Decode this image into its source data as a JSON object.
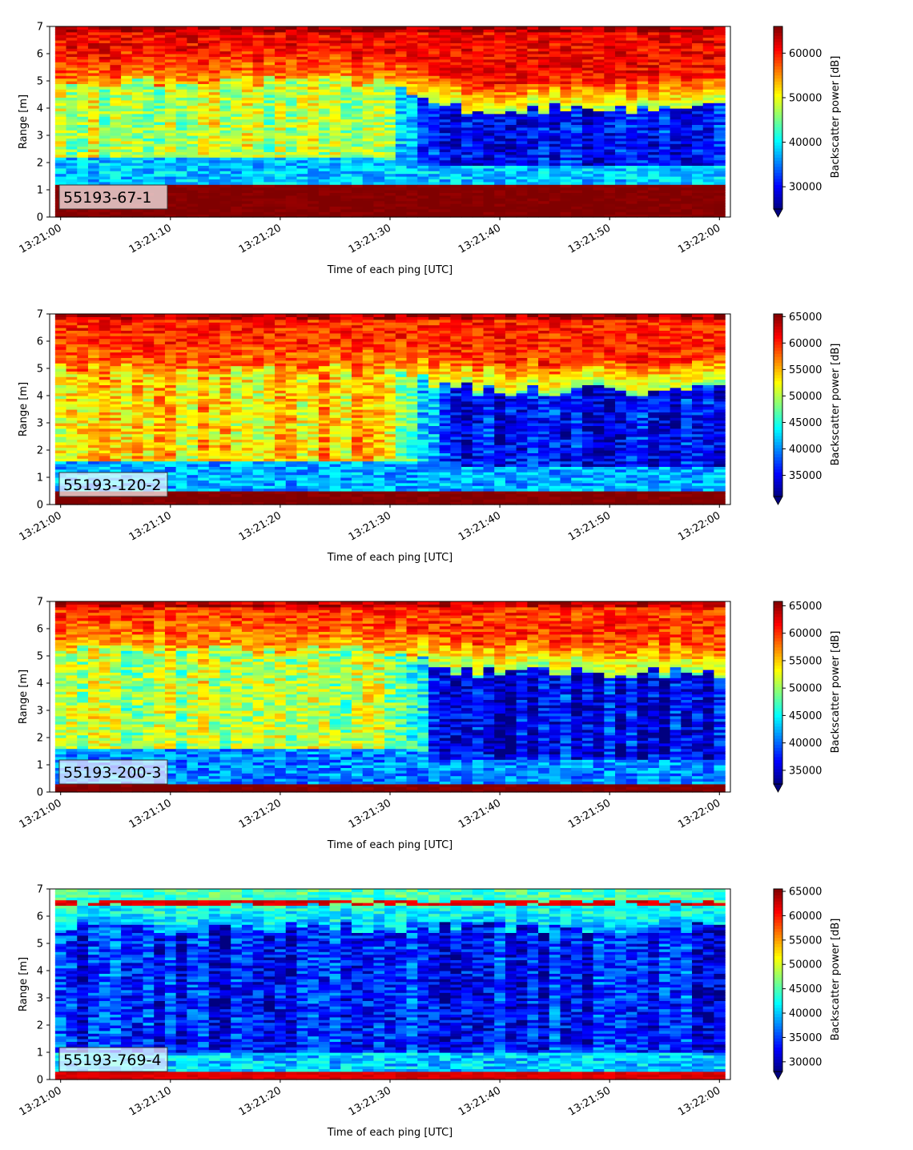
{
  "chart_data": [
    {
      "type": "heatmap",
      "id_label": "55193-67-1",
      "xlabel": "Time of each ping [UTC]",
      "ylabel": "Range [m]",
      "colorbar_label": "Backscatter power [dB]",
      "colormap": "jet",
      "xlim": [
        -1,
        61
      ],
      "ylim": [
        0,
        7
      ],
      "x_tick_values": [
        0,
        10,
        20,
        30,
        40,
        50,
        60
      ],
      "x_tick_labels": [
        "13:21:00",
        "13:21:10",
        "13:21:20",
        "13:21:30",
        "13:21:40",
        "13:21:50",
        "13:22:00"
      ],
      "y_ticks": [
        0,
        1,
        2,
        3,
        4,
        5,
        6,
        7
      ],
      "colorbar_range": [
        25000,
        66000
      ],
      "colorbar_ticks": [
        30000,
        40000,
        50000,
        60000
      ],
      "colorbar_extend": "min",
      "n_pings": 61,
      "profile": {
        "bottom_band_top_m": 1.2,
        "bottom_band_level": 66000,
        "upper_level": 61000,
        "upper_top_m": 7.0,
        "transition_start_s": 28,
        "transition_end_s": 35,
        "surface_before_m": 5.0,
        "surface_after_m": 4.0,
        "mid_level_before": 48000,
        "mid_level_after": 30500,
        "mid_lower_m_before": 2.2,
        "mid_lower_m_after": 1.9,
        "near_band_level": 38000,
        "near_band_m": [
          1.2,
          2.0
        ],
        "noise": 5000
      }
    },
    {
      "type": "heatmap",
      "id_label": "55193-120-2",
      "xlabel": "Time of each ping [UTC]",
      "ylabel": "Range [m]",
      "colorbar_label": "Backscatter power [dB]",
      "colormap": "jet",
      "xlim": [
        -1,
        61
      ],
      "ylim": [
        0,
        7
      ],
      "x_tick_values": [
        0,
        10,
        20,
        30,
        40,
        50,
        60
      ],
      "x_tick_labels": [
        "13:21:00",
        "13:21:10",
        "13:21:20",
        "13:21:30",
        "13:21:40",
        "13:21:50",
        "13:22:00"
      ],
      "y_ticks": [
        0,
        1,
        2,
        3,
        4,
        5,
        6,
        7
      ],
      "colorbar_range": [
        31000,
        65500
      ],
      "colorbar_ticks": [
        35000,
        40000,
        45000,
        50000,
        55000,
        60000,
        65000
      ],
      "colorbar_extend": "min",
      "n_pings": 61,
      "profile": {
        "bottom_band_top_m": 0.55,
        "bottom_band_level": 65500,
        "upper_level": 60000,
        "upper_top_m": 7.0,
        "transition_start_s": 28,
        "transition_end_s": 38,
        "surface_before_m": 5.0,
        "surface_after_m": 4.2,
        "mid_level_before": 54000,
        "mid_level_after": 35000,
        "mid_lower_m_before": 1.6,
        "mid_lower_m_after": 1.4,
        "near_band_level": 41000,
        "near_band_m": [
          0.55,
          1.6
        ],
        "noise": 4500
      }
    },
    {
      "type": "heatmap",
      "id_label": "55193-200-3",
      "xlabel": "Time of each ping [UTC]",
      "ylabel": "Range [m]",
      "colorbar_label": "Backscatter power [dB]",
      "colormap": "jet",
      "xlim": [
        -1,
        61
      ],
      "ylim": [
        0,
        7
      ],
      "x_tick_values": [
        0,
        10,
        20,
        30,
        40,
        50,
        60
      ],
      "x_tick_labels": [
        "13:21:00",
        "13:21:10",
        "13:21:20",
        "13:21:30",
        "13:21:40",
        "13:21:50",
        "13:22:00"
      ],
      "y_ticks": [
        0,
        1,
        2,
        3,
        4,
        5,
        6,
        7
      ],
      "colorbar_range": [
        32500,
        65800
      ],
      "colorbar_ticks": [
        35000,
        40000,
        45000,
        50000,
        55000,
        60000,
        65000
      ],
      "colorbar_extend": "min",
      "n_pings": 61,
      "profile": {
        "bottom_band_top_m": 0.35,
        "bottom_band_level": 65800,
        "upper_level": 60000,
        "upper_top_m": 7.0,
        "transition_start_s": 30,
        "transition_end_s": 36,
        "surface_before_m": 5.2,
        "surface_after_m": 4.4,
        "mid_level_before": 51000,
        "mid_level_after": 36000,
        "mid_lower_m_before": 1.6,
        "mid_lower_m_after": 1.2,
        "near_band_level": 41000,
        "near_band_m": [
          0.35,
          1.6
        ],
        "noise": 4500
      }
    },
    {
      "type": "heatmap",
      "id_label": "55193-769-4",
      "xlabel": "Time of each ping [UTC]",
      "ylabel": "Range [m]",
      "colorbar_label": "Backscatter power [dB]",
      "colormap": "jet",
      "xlim": [
        -1,
        61
      ],
      "ylim": [
        0,
        7
      ],
      "x_tick_values": [
        0,
        10,
        20,
        30,
        40,
        50,
        60
      ],
      "x_tick_labels": [
        "13:21:00",
        "13:21:10",
        "13:21:20",
        "13:21:30",
        "13:21:40",
        "13:21:50",
        "13:22:00"
      ],
      "y_ticks": [
        0,
        1,
        2,
        3,
        4,
        5,
        6,
        7
      ],
      "colorbar_range": [
        28000,
        65500
      ],
      "colorbar_ticks": [
        30000,
        35000,
        40000,
        45000,
        50000,
        55000,
        60000,
        65000
      ],
      "colorbar_extend": "min",
      "n_pings": 61,
      "profile": {
        "bottom_band_top_m": 0.3,
        "bottom_band_level": 62000,
        "upper_level": 45000,
        "upper_top_m": 7.0,
        "transition_start_s": 60,
        "transition_end_s": 61,
        "surface_before_m": 5.6,
        "surface_after_m": 5.6,
        "mid_level_before": 33500,
        "mid_level_after": 33500,
        "mid_lower_m_before": 1.0,
        "mid_lower_m_after": 1.0,
        "near_band_level": 40000,
        "near_band_m": [
          0.3,
          1.0
        ],
        "noise": 5000,
        "top_stripe_m": 6.5,
        "top_stripe_level": 62000
      }
    }
  ]
}
